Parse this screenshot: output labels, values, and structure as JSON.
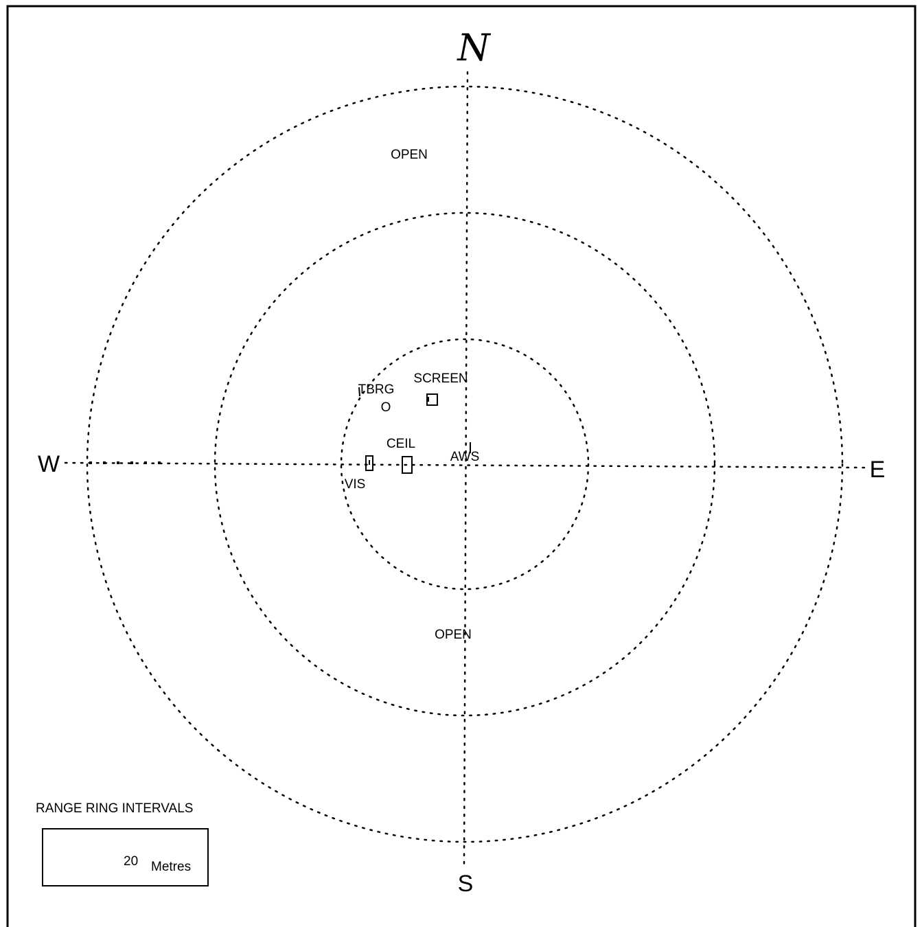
{
  "compass": {
    "north": "N",
    "south": "S",
    "east": "E",
    "west": "W"
  },
  "labels": {
    "open_north": "OPEN",
    "open_south": "OPEN",
    "screen": "SCREEN",
    "tbrg_line1": "TBRG",
    "tbrg_line2": "O",
    "ceil": "CEIL",
    "aws": "AWS",
    "vis": "VIS"
  },
  "legend": {
    "title": "RANGE RING INTERVALS",
    "value": "20",
    "unit": "Metres"
  },
  "colors": {
    "ink": "#000000",
    "background": "#ffffff"
  }
}
